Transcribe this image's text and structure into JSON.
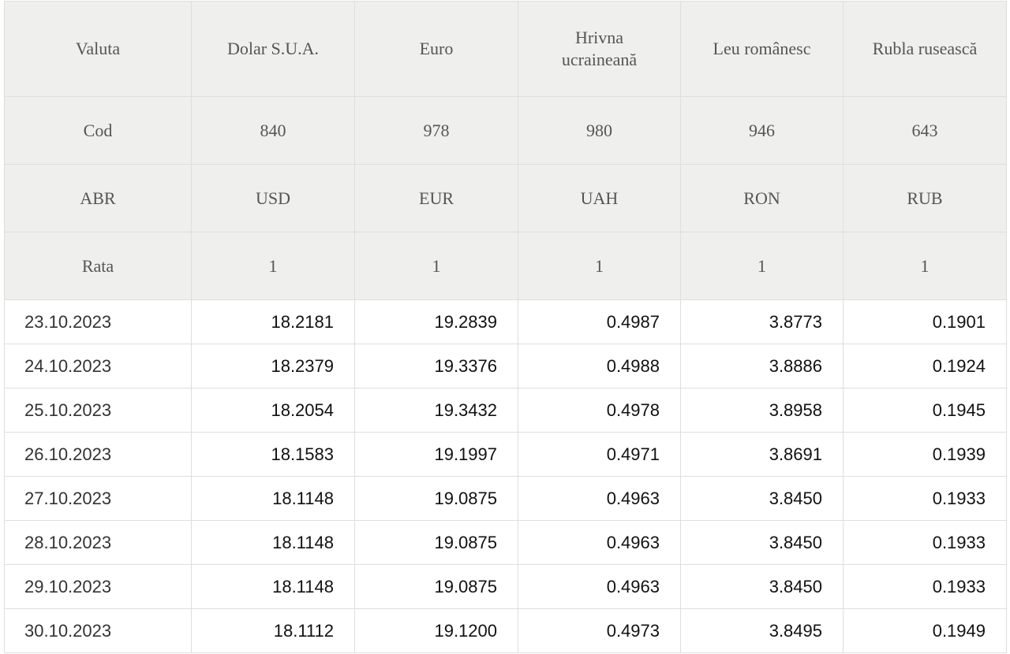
{
  "table": {
    "header_rows": [
      [
        "Valuta",
        "Dolar S.U.A.",
        "Euro",
        "Hrivna ucraineană",
        "Leu românesc",
        "Rubla rusească"
      ],
      [
        "Cod",
        "840",
        "978",
        "980",
        "946",
        "643"
      ],
      [
        "ABR",
        "USD",
        "EUR",
        "UAH",
        "RON",
        "RUB"
      ],
      [
        "Rata",
        "1",
        "1",
        "1",
        "1",
        "1"
      ]
    ],
    "rows": [
      [
        "23.10.2023",
        "18.2181",
        "19.2839",
        "0.4987",
        "3.8773",
        "0.1901"
      ],
      [
        "24.10.2023",
        "18.2379",
        "19.3376",
        "0.4988",
        "3.8886",
        "0.1924"
      ],
      [
        "25.10.2023",
        "18.2054",
        "19.3432",
        "0.4978",
        "3.8958",
        "0.1945"
      ],
      [
        "26.10.2023",
        "18.1583",
        "19.1997",
        "0.4971",
        "3.8691",
        "0.1939"
      ],
      [
        "27.10.2023",
        "18.1148",
        "19.0875",
        "0.4963",
        "3.8450",
        "0.1933"
      ],
      [
        "28.10.2023",
        "18.1148",
        "19.0875",
        "0.4963",
        "3.8450",
        "0.1933"
      ],
      [
        "29.10.2023",
        "18.1148",
        "19.0875",
        "0.4963",
        "3.8450",
        "0.1933"
      ],
      [
        "30.10.2023",
        "18.1112",
        "19.1200",
        "0.4973",
        "3.8495",
        "0.1949"
      ]
    ]
  }
}
